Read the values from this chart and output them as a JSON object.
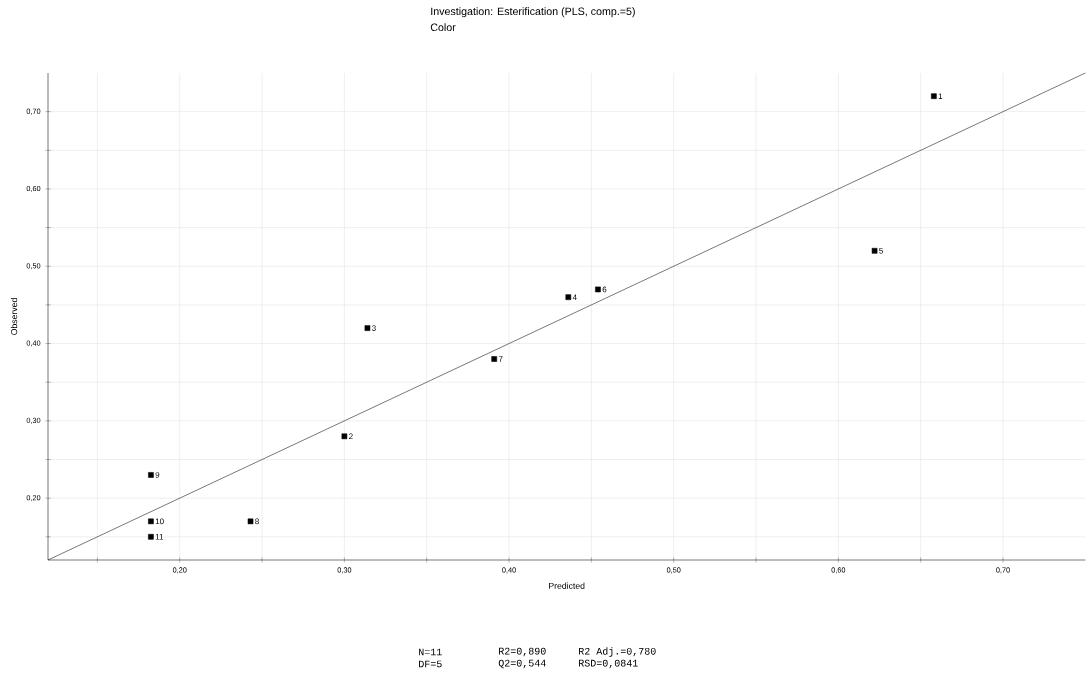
{
  "chart_data": {
    "type": "scatter",
    "title": "Investigation: Esterification (PLS, comp.=5)",
    "subtitle": "Color",
    "xlabel": "Predicted",
    "ylabel": "Observed",
    "xlim": [
      0.12,
      0.75
    ],
    "ylim": [
      0.12,
      0.75
    ],
    "xticks": [
      {
        "value": 0.15,
        "label": null
      },
      {
        "value": 0.2,
        "label": "0,20"
      },
      {
        "value": 0.25,
        "label": null
      },
      {
        "value": 0.3,
        "label": "0,30"
      },
      {
        "value": 0.35,
        "label": null
      },
      {
        "value": 0.4,
        "label": "0,40"
      },
      {
        "value": 0.45,
        "label": null
      },
      {
        "value": 0.5,
        "label": "0,50"
      },
      {
        "value": 0.55,
        "label": null
      },
      {
        "value": 0.6,
        "label": "0,60"
      },
      {
        "value": 0.65,
        "label": null
      },
      {
        "value": 0.7,
        "label": "0,70"
      }
    ],
    "yticks": [
      {
        "value": 0.15,
        "label": null
      },
      {
        "value": 0.2,
        "label": "0,20"
      },
      {
        "value": 0.25,
        "label": null
      },
      {
        "value": 0.3,
        "label": "0,30"
      },
      {
        "value": 0.35,
        "label": null
      },
      {
        "value": 0.4,
        "label": "0,40"
      },
      {
        "value": 0.45,
        "label": null
      },
      {
        "value": 0.5,
        "label": "0,50"
      },
      {
        "value": 0.55,
        "label": null
      },
      {
        "value": 0.6,
        "label": "0,60"
      },
      {
        "value": 0.65,
        "label": null
      },
      {
        "value": 0.7,
        "label": "0,70"
      }
    ],
    "grid": true,
    "marker": "square",
    "series": [
      {
        "color": "#000000",
        "x": [
          0.658,
          0.3,
          0.314,
          0.436,
          0.622,
          0.454,
          0.391,
          0.243,
          0.1825,
          0.1825,
          0.1825
        ],
        "values": [
          0.72,
          0.28,
          0.42,
          0.46,
          0.52,
          0.47,
          0.38,
          0.17,
          0.23,
          0.17,
          0.15
        ]
      },
      {
        "type": "line",
        "marker": "none",
        "color": "#000000",
        "x": [
          0.12,
          0.75
        ],
        "values": [
          0.12,
          0.75
        ]
      }
    ],
    "annotations": [
      {
        "text": "1",
        "x": 0.658,
        "y": 0.72
      },
      {
        "text": "2",
        "x": 0.3,
        "y": 0.28
      },
      {
        "text": "3",
        "x": 0.314,
        "y": 0.42
      },
      {
        "text": "4",
        "x": 0.436,
        "y": 0.46
      },
      {
        "text": "5",
        "x": 0.622,
        "y": 0.52
      },
      {
        "text": "6",
        "x": 0.454,
        "y": 0.47
      },
      {
        "text": "7",
        "x": 0.391,
        "y": 0.38
      },
      {
        "text": "8",
        "x": 0.243,
        "y": 0.17
      },
      {
        "text": "9",
        "x": 0.1825,
        "y": 0.23
      },
      {
        "text": "10",
        "x": 0.1825,
        "y": 0.17
      },
      {
        "text": "11",
        "x": 0.1825,
        "y": 0.15
      },
      "N=11",
      "DF=5",
      "R2=0,890",
      "Q2=0,544",
      "R2 Adj.=0,780",
      "RSD=0,0841"
    ]
  }
}
